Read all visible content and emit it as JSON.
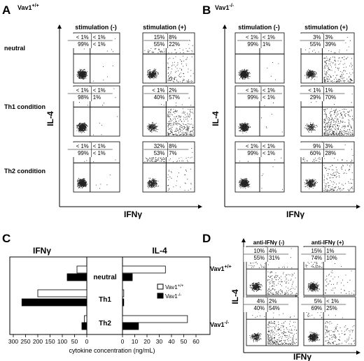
{
  "panels": {
    "A": {
      "letter": "A",
      "genotype_base": "Vav1",
      "genotype_sup": "+/+",
      "col_headers": [
        "stimulation (-)",
        "stimulation (+)"
      ],
      "row_labels": [
        "neutral",
        "Th1 condition",
        "Th2 condition"
      ],
      "y_axis": "IL-4",
      "x_axis": "IFNγ",
      "plots": [
        {
          "row": 0,
          "col": 0,
          "quadrants": [
            "< 1%",
            "< 1%",
            "99%",
            "< 1%"
          ]
        },
        {
          "row": 0,
          "col": 1,
          "quadrants": [
            "15%",
            "8%",
            "55%",
            "22%"
          ]
        },
        {
          "row": 1,
          "col": 0,
          "quadrants": [
            "< 1%",
            "< 1%",
            "98%",
            "1%"
          ]
        },
        {
          "row": 1,
          "col": 1,
          "quadrants": [
            "< 1%",
            "2%",
            "40%",
            "57%"
          ]
        },
        {
          "row": 2,
          "col": 0,
          "quadrants": [
            "< 1%",
            "< 1%",
            "99%",
            "< 1%"
          ]
        },
        {
          "row": 2,
          "col": 1,
          "quadrants": [
            "32%",
            "8%",
            "53%",
            "7%"
          ]
        }
      ]
    },
    "B": {
      "letter": "B",
      "genotype_base": "Vav1",
      "genotype_sup": "-/-",
      "col_headers": [
        "stimulation (-)",
        "stimulation (+)"
      ],
      "y_axis": "IL-4",
      "x_axis": "IFNγ",
      "plots": [
        {
          "row": 0,
          "col": 0,
          "quadrants": [
            "< 1%",
            "< 1%",
            "99%",
            "1%"
          ]
        },
        {
          "row": 0,
          "col": 1,
          "quadrants": [
            "3%",
            "3%",
            "55%",
            "39%"
          ]
        },
        {
          "row": 1,
          "col": 0,
          "quadrants": [
            "< 1%",
            "< 1%",
            "99%",
            "< 1%"
          ]
        },
        {
          "row": 1,
          "col": 1,
          "quadrants": [
            "< 1%",
            "1%",
            "29%",
            "70%"
          ]
        },
        {
          "row": 2,
          "col": 0,
          "quadrants": [
            "< 1%",
            "< 1%",
            "99%",
            "< 1%"
          ]
        },
        {
          "row": 2,
          "col": 1,
          "quadrants": [
            "9%",
            "3%",
            "60%",
            "28%"
          ]
        }
      ]
    },
    "C": {
      "letter": "C",
      "left_title": "IFNγ",
      "right_title": "IL-4",
      "categories": [
        "neutral",
        "Th1",
        "Th2"
      ],
      "xlabel": "cytokine concentration (ng/mL)",
      "left_ticks": [
        "300",
        "250",
        "200",
        "150",
        "100",
        "50",
        "0"
      ],
      "right_ticks": [
        "0",
        "10",
        "20",
        "30",
        "40",
        "50",
        "60"
      ],
      "legend": [
        {
          "base": "Vav1",
          "sup": "+/+",
          "color": "#ffffff"
        },
        {
          "base": "Vav1",
          "sup": "-/-",
          "color": "#000000"
        }
      ]
    },
    "D": {
      "letter": "D",
      "col_headers": [
        "anti-IFNγ (-)",
        "anti-IFNγ (+)"
      ],
      "rows": [
        {
          "base": "Vav1",
          "sup": "+/+"
        },
        {
          "base": "Vav1",
          "sup": "-/-"
        }
      ],
      "y_axis": "IL-4",
      "x_axis": "IFNγ",
      "plots": [
        {
          "row": 0,
          "col": 0,
          "quadrants": [
            "10%",
            "4%",
            "55%",
            "31%"
          ]
        },
        {
          "row": 0,
          "col": 1,
          "quadrants": [
            "15%",
            "1%",
            "74%",
            "10%"
          ]
        },
        {
          "row": 1,
          "col": 0,
          "quadrants": [
            "4%",
            "2%",
            "40%",
            "54%"
          ]
        },
        {
          "row": 1,
          "col": 1,
          "quadrants": [
            "5%",
            "< 1%",
            "69%",
            "25%"
          ]
        }
      ]
    }
  },
  "chart_data": {
    "type": "bar",
    "categories": [
      "neutral",
      "Th1",
      "Th2"
    ],
    "xlabel": "cytokine concentration (ng/mL)",
    "panels": [
      {
        "title": "IFNγ",
        "xlim": [
          300,
          0
        ],
        "series": [
          {
            "name": "Vav1+/+",
            "values": [
              40,
              200,
              10
            ]
          },
          {
            "name": "Vav1-/-",
            "values": [
              80,
              265,
              20
            ]
          }
        ]
      },
      {
        "title": "IL-4",
        "xlim": [
          0,
          60
        ],
        "series": [
          {
            "name": "Vav1+/+",
            "values": [
              35,
              1,
              53
            ]
          },
          {
            "name": "Vav1-/-",
            "values": [
              8,
              1,
              13
            ]
          }
        ]
      }
    ]
  }
}
